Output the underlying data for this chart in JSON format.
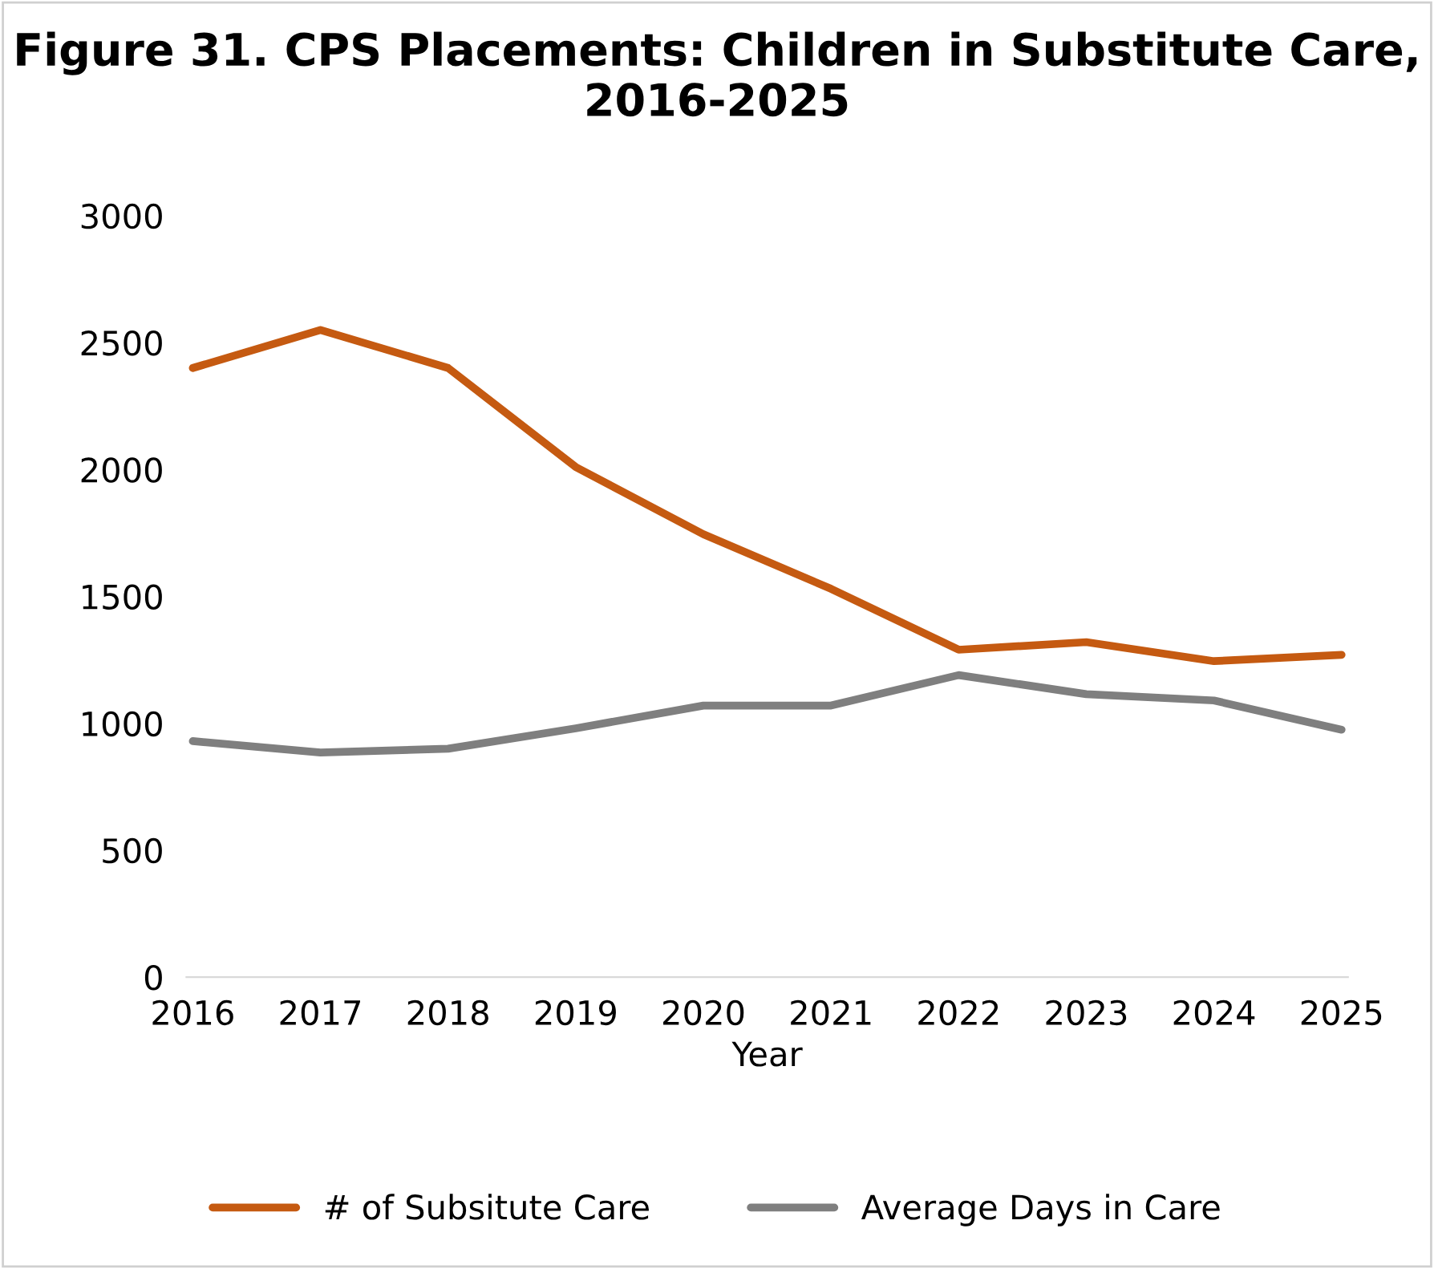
{
  "chart_data": {
    "type": "line",
    "title": "Figure 31. CPS Placements: Children in Substitute Care, 2016-2025",
    "xlabel": "Year",
    "categories": [
      "2016",
      "2017",
      "2018",
      "2019",
      "2020",
      "2021",
      "2022",
      "2023",
      "2024",
      "2025"
    ],
    "series": [
      {
        "name": "# of Subsitute Care",
        "color": "#c55a11",
        "values": [
          2400,
          2550,
          2400,
          2010,
          1745,
          1530,
          1290,
          1320,
          1245,
          1270
        ]
      },
      {
        "name": "Average Days in Care",
        "color": "#7f7f7f",
        "values": [
          930,
          885,
          900,
          980,
          1070,
          1070,
          1190,
          1115,
          1090,
          975
        ]
      }
    ],
    "ylim": [
      0,
      3000
    ],
    "yticks": [
      0,
      500,
      1000,
      1500,
      2000,
      2500,
      3000
    ],
    "grid": false,
    "legend": "bottom",
    "marker": "none",
    "line_style": "solid"
  }
}
